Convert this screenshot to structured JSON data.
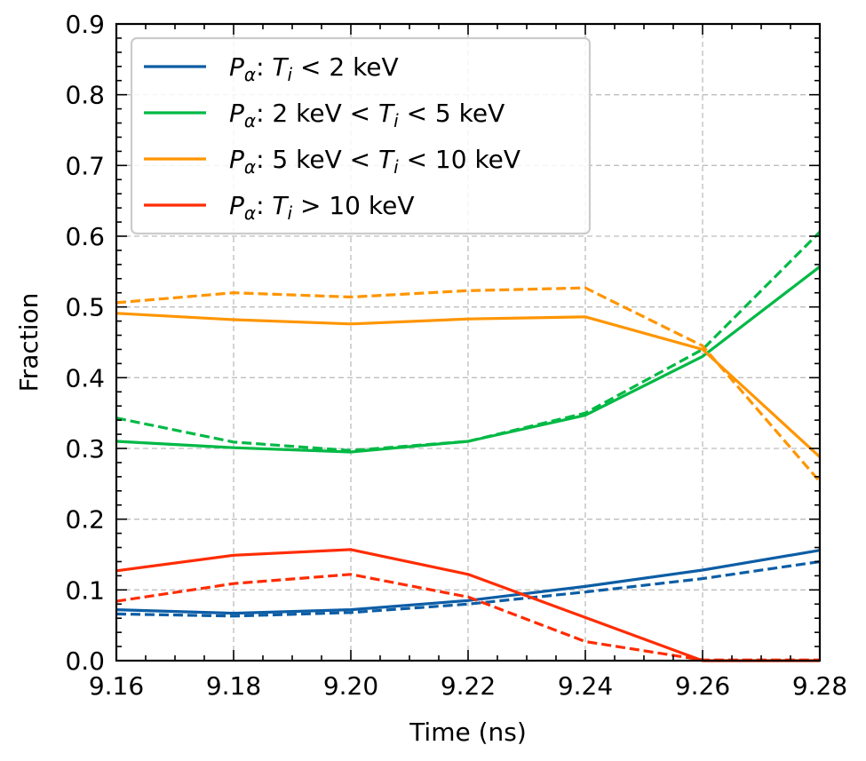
{
  "chart_data": {
    "type": "line",
    "title": "",
    "xlabel": "Time (ns)",
    "ylabel": "Fraction",
    "xlim": [
      9.16,
      9.28
    ],
    "ylim": [
      0.0,
      0.9
    ],
    "grid": true,
    "legend_position": "top-left",
    "x": [
      9.16,
      9.18,
      9.2,
      9.22,
      9.24,
      9.26,
      9.28
    ],
    "xticks": [
      "9.16",
      "9.18",
      "9.20",
      "9.22",
      "9.24",
      "9.26",
      "9.28"
    ],
    "yticks": [
      "0.0",
      "0.1",
      "0.2",
      "0.3",
      "0.4",
      "0.5",
      "0.6",
      "0.7",
      "0.8",
      "0.9"
    ],
    "series": [
      {
        "name": "P_alpha: T_i < 2 keV",
        "legend": {
          "sym": "P",
          "sub": "α",
          "pre": ": ",
          "ti": "T",
          "tisub": "i",
          "post": " < 2 keV",
          "lead": ""
        },
        "color": "#0c5da5",
        "style": "solid",
        "values": [
          0.072,
          0.067,
          0.072,
          0.085,
          0.105,
          0.128,
          0.156
        ]
      },
      {
        "name": "P_alpha: T_i < 2 keV (dashed)",
        "color": "#0c5da5",
        "style": "dashed",
        "values": [
          0.066,
          0.063,
          0.068,
          0.08,
          0.097,
          0.116,
          0.14
        ]
      },
      {
        "name": "P_alpha: 2 keV < T_i < 5 keV",
        "legend": {
          "sym": "P",
          "sub": "α",
          "pre": ": 2 keV < ",
          "ti": "T",
          "tisub": "i",
          "post": " < 5 keV",
          "lead": ""
        },
        "color": "#00b945",
        "style": "solid",
        "values": [
          0.31,
          0.301,
          0.295,
          0.31,
          0.347,
          0.43,
          0.557
        ]
      },
      {
        "name": "P_alpha: 2 keV < T_i < 5 keV (dashed)",
        "color": "#00b945",
        "style": "dashed",
        "values": [
          0.343,
          0.309,
          0.297,
          0.31,
          0.35,
          0.44,
          0.606
        ]
      },
      {
        "name": "P_alpha: 5 keV < T_i < 10 keV",
        "legend": {
          "sym": "P",
          "sub": "α",
          "pre": ": 5 keV < ",
          "ti": "T",
          "tisub": "i",
          "post": " < 10 keV",
          "lead": ""
        },
        "color": "#ff9500",
        "style": "solid",
        "values": [
          0.491,
          0.482,
          0.476,
          0.483,
          0.486,
          0.44,
          0.288
        ]
      },
      {
        "name": "P_alpha: 5 keV < T_i < 10 keV (dashed)",
        "color": "#ff9500",
        "style": "dashed",
        "values": [
          0.506,
          0.52,
          0.514,
          0.523,
          0.527,
          0.445,
          0.253
        ]
      },
      {
        "name": "P_alpha: T_i > 10 keV",
        "legend": {
          "sym": "P",
          "sub": "α",
          "pre": ": ",
          "ti": "T",
          "tisub": "i",
          "post": " > 10 keV",
          "lead": ""
        },
        "color": "#ff2c00",
        "style": "solid",
        "values": [
          0.127,
          0.149,
          0.157,
          0.122,
          0.061,
          0.0,
          0.0
        ]
      },
      {
        "name": "P_alpha: T_i > 10 keV (dashed)",
        "color": "#ff2c00",
        "style": "dashed",
        "values": [
          0.084,
          0.109,
          0.122,
          0.09,
          0.027,
          0.001,
          0.001
        ]
      }
    ]
  }
}
